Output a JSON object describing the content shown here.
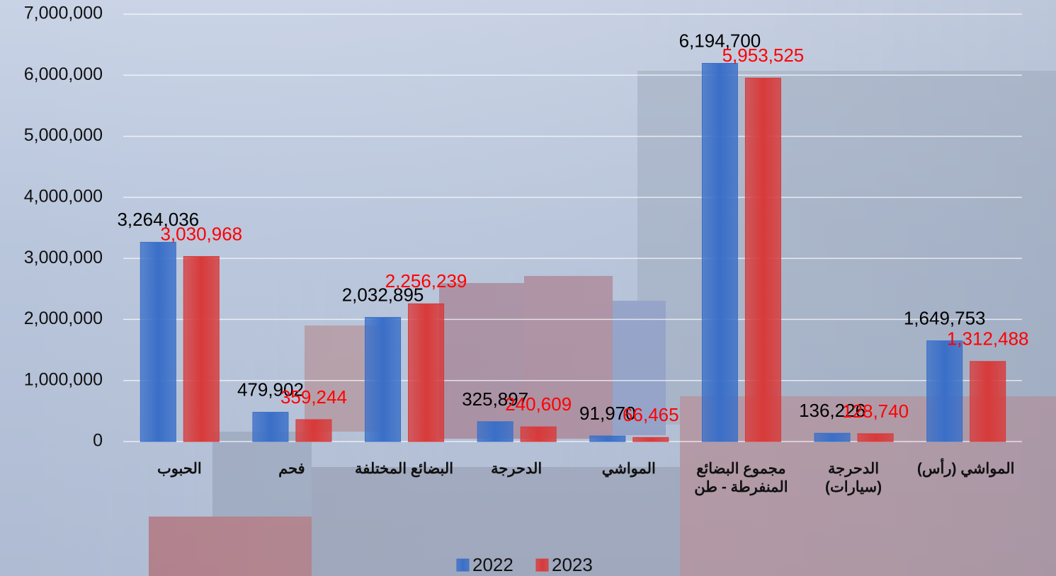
{
  "chart_data": {
    "type": "bar",
    "categories": [
      "الحبوب",
      "فحم",
      "البضائع المختلفة",
      "الدحرجة",
      "المواشي",
      "مجموع البضائع المنفرطة - طن",
      "الدحرجة (سيارات)",
      "المواشي (رأس)"
    ],
    "series": [
      {
        "name": "2022",
        "color": "#3a6fc8",
        "label_color": "#000000",
        "values": [
          3264036,
          479902,
          2032895,
          325897,
          91970,
          6194700,
          136226,
          1649753
        ],
        "value_labels": [
          "3,264,036",
          "479,902",
          "2,032,895",
          "325,897",
          "91,970",
          "6,194,700",
          "136,226",
          "1,649,753"
        ]
      },
      {
        "name": "2023",
        "color": "#d83a3a",
        "label_color": "#ff0000",
        "values": [
          3030968,
          359244,
          2256239,
          240609,
          66465,
          5953525,
          128740,
          1312488
        ],
        "value_labels": [
          "3,030,968",
          "359,244",
          "2,256,239",
          "240,609",
          "66,465",
          "5,953,525",
          "128,740",
          "1,312,488"
        ]
      }
    ],
    "ylim": [
      0,
      7000000
    ],
    "yticks": [
      0,
      {
        "value": 1000000,
        "label": "1,000,000"
      },
      {
        "value": 2000000,
        "label": "2,000,000"
      },
      {
        "value": 3000000,
        "label": "3,000,000"
      },
      {
        "value": 4000000,
        "label": "4,000,000"
      },
      {
        "value": 5000000,
        "label": "5,000,000"
      },
      {
        "value": 6000000,
        "label": "6,000,000"
      },
      {
        "value": 7000000,
        "label": "7,000,000"
      }
    ],
    "grid": true,
    "legend": "bottom"
  }
}
